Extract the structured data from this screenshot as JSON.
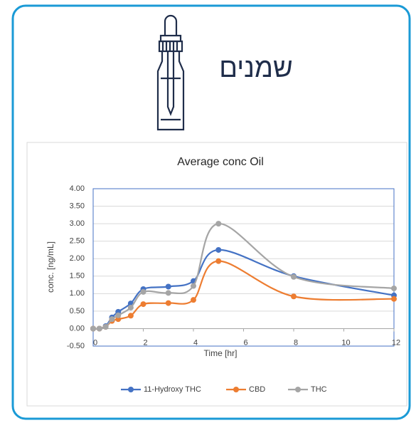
{
  "header": {
    "title": "שמנים"
  },
  "chart_data": {
    "type": "line",
    "title": "Average conc Oil",
    "x_label": "Time [hr]",
    "y_label": "conc. [ng/mL]",
    "x": [
      0,
      0.25,
      0.5,
      0.75,
      1,
      1.5,
      2,
      3,
      4,
      5,
      8,
      12
    ],
    "series": [
      {
        "name": "11-Hydroxy THC",
        "color": "#4472c4",
        "values": [
          0,
          0,
          0.07,
          0.32,
          0.48,
          0.72,
          1.13,
          1.2,
          1.36,
          2.25,
          1.5,
          0.95
        ]
      },
      {
        "name": "CBD",
        "color": "#ed7d31",
        "values": [
          0,
          0,
          0.05,
          0.22,
          0.27,
          0.37,
          0.7,
          0.73,
          0.82,
          1.93,
          0.92,
          0.85
        ]
      },
      {
        "name": "THC",
        "color": "#a5a5a5",
        "values": [
          0,
          0,
          0.05,
          0.27,
          0.38,
          0.6,
          1.05,
          1.02,
          1.22,
          3.0,
          1.48,
          1.15
        ]
      }
    ],
    "xlim": [
      0,
      12
    ],
    "xticks": [
      0,
      2,
      4,
      6,
      8,
      10,
      12
    ],
    "ylim": [
      -0.5,
      4
    ],
    "yticks": [
      {
        "value": -0.5,
        "label": "-0.50"
      },
      {
        "value": 0,
        "label": "0.00"
      },
      {
        "value": 0.5,
        "label": "0.50"
      },
      {
        "value": 1,
        "label": "1.00"
      },
      {
        "value": 1.5,
        "label": "1.50"
      },
      {
        "value": 2,
        "label": "2.00"
      },
      {
        "value": 2.5,
        "label": "2.50"
      },
      {
        "value": 3,
        "label": "3.00"
      },
      {
        "value": 3.5,
        "label": "3.50"
      },
      {
        "value": 4,
        "label": "4.00"
      }
    ],
    "grid": true,
    "legend": "bottom"
  }
}
